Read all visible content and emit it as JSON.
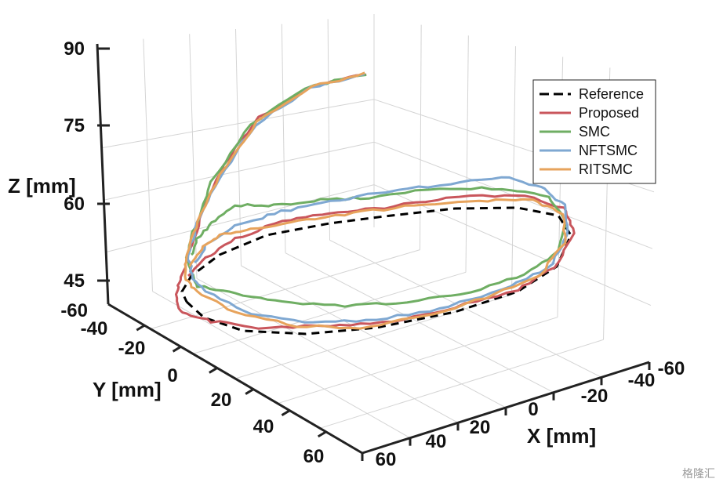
{
  "chart_data": {
    "type": "line",
    "title": "",
    "xlabel": "X [mm]",
    "ylabel": "Y [mm]",
    "zlabel": "Z [mm]",
    "xlim": [
      -60,
      60
    ],
    "ylim": [
      -60,
      60
    ],
    "zlim": [
      40,
      90
    ],
    "x_ticks": [
      "-60",
      "-40",
      "-20",
      "0",
      "20",
      "40",
      "60"
    ],
    "y_ticks": [
      "-40",
      "-20",
      "0",
      "20",
      "40",
      "60"
    ],
    "z_ticks": [
      "90",
      "75",
      "60",
      "45"
    ],
    "corner_tick": "-60",
    "legend_position": "top-right",
    "grid": true,
    "series": [
      {
        "name": "Reference",
        "color": "#000000",
        "dash": true
      },
      {
        "name": "Proposed",
        "color": "#c9565c",
        "dash": false
      },
      {
        "name": "SMC",
        "color": "#6fae63",
        "dash": false
      },
      {
        "name": "NFTSMC",
        "color": "#7fa8d2",
        "dash": false
      },
      {
        "name": "RITSMC",
        "color": "#e7a35c",
        "dash": false
      }
    ]
  },
  "watermark": "格隆汇"
}
